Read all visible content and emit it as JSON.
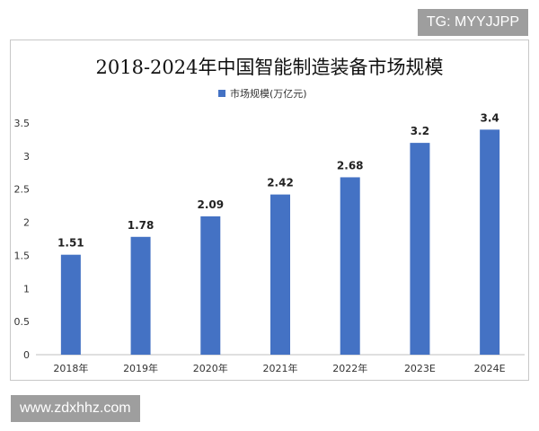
{
  "watermark_top": "TG: MYYJJPP",
  "watermark_bottom": "www.zdxhhz.com",
  "chart_data": {
    "type": "bar",
    "title": "2018-2024年中国智能制造装备市场规模",
    "categories": [
      "2018年",
      "2019年",
      "2020年",
      "2021年",
      "2022年",
      "2023E",
      "2024E"
    ],
    "series": [
      {
        "name": "市场规模(万亿元)",
        "values": [
          1.51,
          1.78,
          2.09,
          2.42,
          2.68,
          3.2,
          3.4
        ]
      }
    ],
    "data_labels": [
      "1.51",
      "1.78",
      "2.09",
      "2.42",
      "2.68",
      "3.2",
      "3.4"
    ],
    "y_ticks": [
      "0",
      "0.5",
      "1",
      "1.5",
      "2",
      "2.5",
      "3",
      "3.5"
    ],
    "ylim": [
      0,
      3.5
    ],
    "legend_position": "top",
    "grid": false,
    "bar_color": "#4472c4"
  }
}
